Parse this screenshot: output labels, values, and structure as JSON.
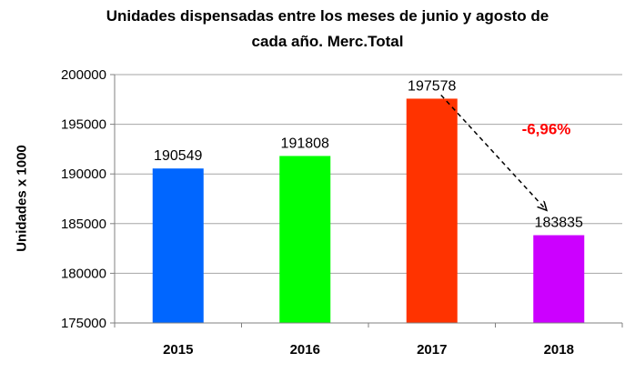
{
  "chart_data": {
    "type": "bar",
    "title_line1": "Unidades dispensadas entre los meses de junio y agosto de",
    "title_line2": "cada año. Merc.Total",
    "xlabel": "",
    "ylabel": "Unidades x 1000",
    "categories": [
      "2015",
      "2016",
      "2017",
      "2018"
    ],
    "values": [
      190549,
      191808,
      197578,
      183835
    ],
    "value_labels": [
      "190549",
      "191808",
      "197578",
      "183835"
    ],
    "bar_colors": [
      "#0066FF",
      "#00FF00",
      "#FF3300",
      "#CC00FF"
    ],
    "ylim": [
      175000,
      200000
    ],
    "yticks": [
      175000,
      180000,
      185000,
      190000,
      195000,
      200000
    ],
    "ytick_labels": [
      "175000",
      "180000",
      "185000",
      "190000",
      "195000",
      "200000"
    ],
    "grid": true,
    "legend": "none",
    "annotation": {
      "text": "-6,96%",
      "color": "#FF0000",
      "arrow_from_category": "2017",
      "arrow_to_category": "2018"
    }
  }
}
